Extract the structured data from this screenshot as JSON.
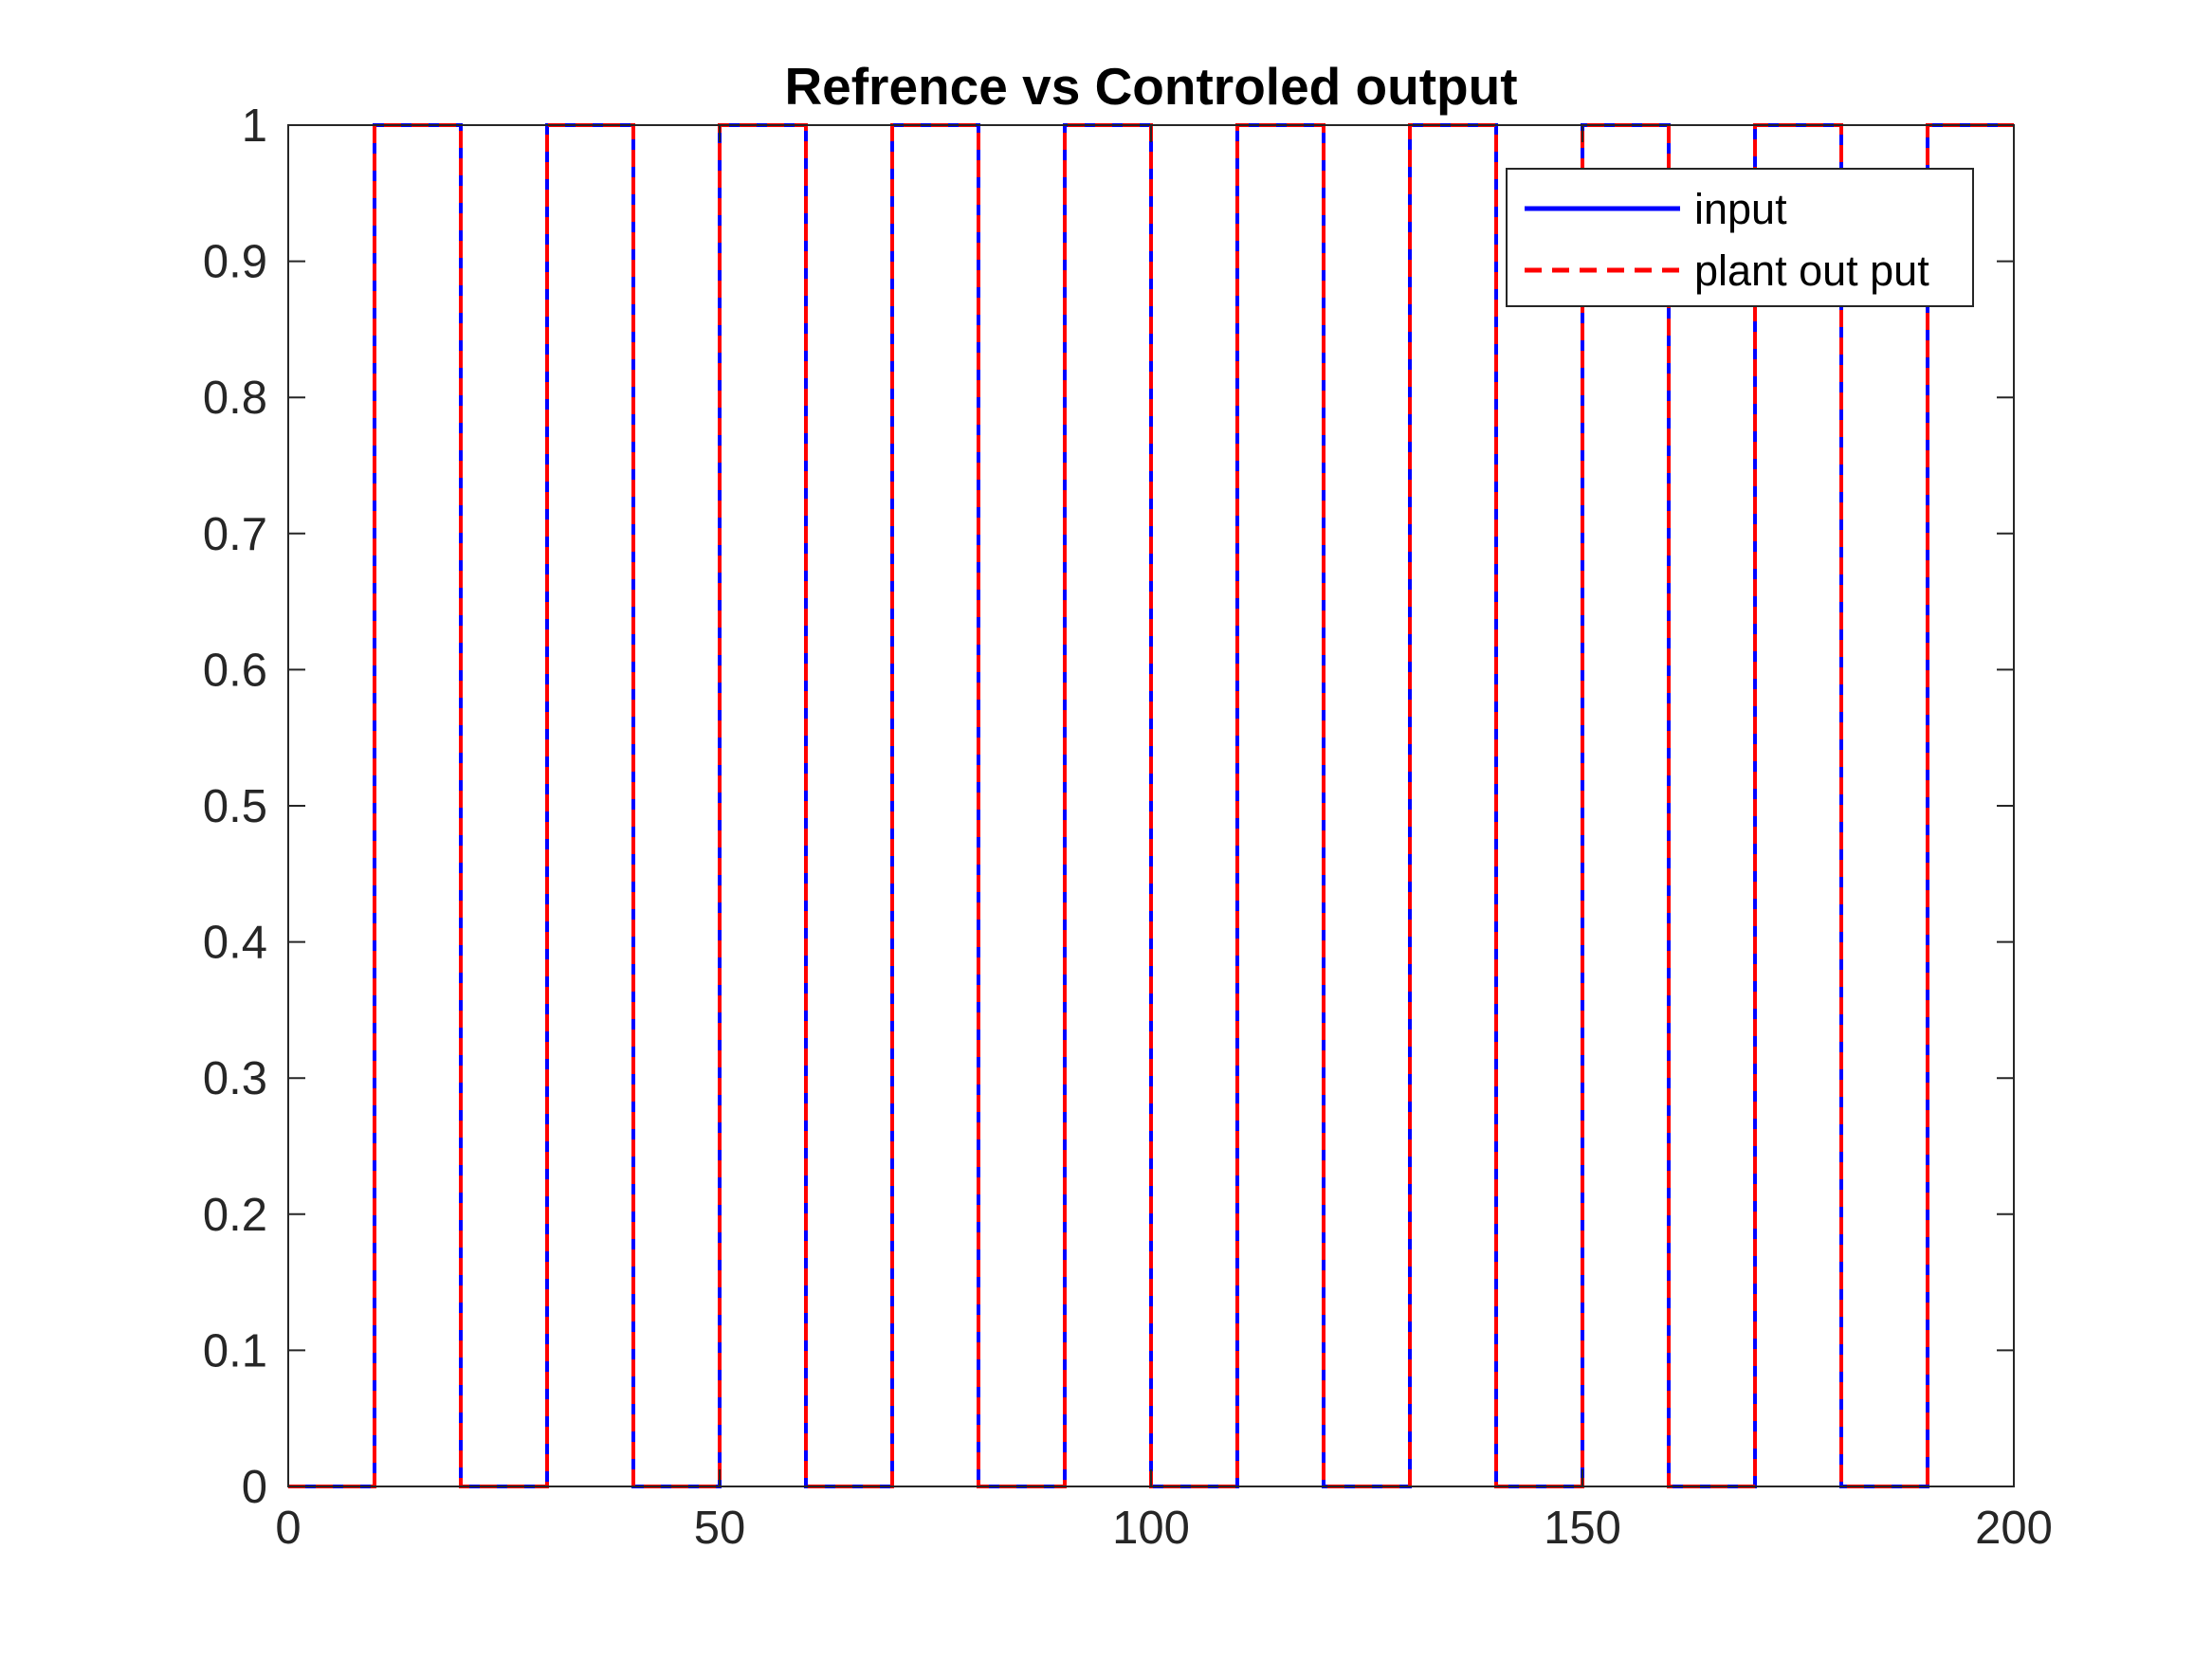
{
  "chart_data": {
    "type": "line",
    "title": "Refrence vs Controled output",
    "xlabel": "",
    "ylabel": "",
    "xlim": [
      0,
      200
    ],
    "ylim": [
      0,
      1
    ],
    "x_ticks": [
      "0",
      "50",
      "100",
      "150",
      "200"
    ],
    "y_ticks": [
      "0",
      "0.1",
      "0.2",
      "0.3",
      "0.4",
      "0.5",
      "0.6",
      "0.7",
      "0.8",
      "0.9",
      "1"
    ],
    "grid": false,
    "legend_position": "top-right",
    "series": [
      {
        "name": "input",
        "color": "#0000ff",
        "style": "solid",
        "x": [
          0,
          10,
          10,
          20,
          20,
          30,
          30,
          40,
          40,
          50,
          50,
          60,
          60,
          70,
          70,
          80,
          80,
          90,
          90,
          100,
          100,
          110,
          110,
          120,
          120,
          130,
          130,
          140,
          140,
          150,
          150,
          160,
          160,
          170,
          170,
          180,
          180,
          190,
          190,
          200
        ],
        "y": [
          0,
          0,
          1,
          1,
          0,
          0,
          1,
          1,
          0,
          0,
          1,
          1,
          0,
          0,
          1,
          1,
          0,
          0,
          1,
          1,
          0,
          0,
          1,
          1,
          0,
          0,
          1,
          1,
          0,
          0,
          1,
          1,
          0,
          0,
          1,
          1,
          0,
          0,
          1,
          1
        ]
      },
      {
        "name": "plant out put",
        "color": "#ff0000",
        "style": "dashed",
        "x": [
          0,
          10,
          10,
          20,
          20,
          30,
          30,
          40,
          40,
          50,
          50,
          60,
          60,
          70,
          70,
          80,
          80,
          90,
          90,
          100,
          100,
          110,
          110,
          120,
          120,
          130,
          130,
          140,
          140,
          150,
          150,
          160,
          160,
          170,
          170,
          180,
          180,
          190,
          190,
          200
        ],
        "y": [
          0,
          0,
          1,
          1,
          0,
          0,
          1,
          1,
          0,
          0,
          1,
          1,
          0,
          0,
          1,
          1,
          0,
          0,
          1,
          1,
          0,
          0,
          1,
          1,
          0,
          0,
          1,
          1,
          0,
          0,
          1,
          1,
          0,
          0,
          1,
          1,
          0,
          0,
          1,
          1
        ]
      }
    ]
  }
}
